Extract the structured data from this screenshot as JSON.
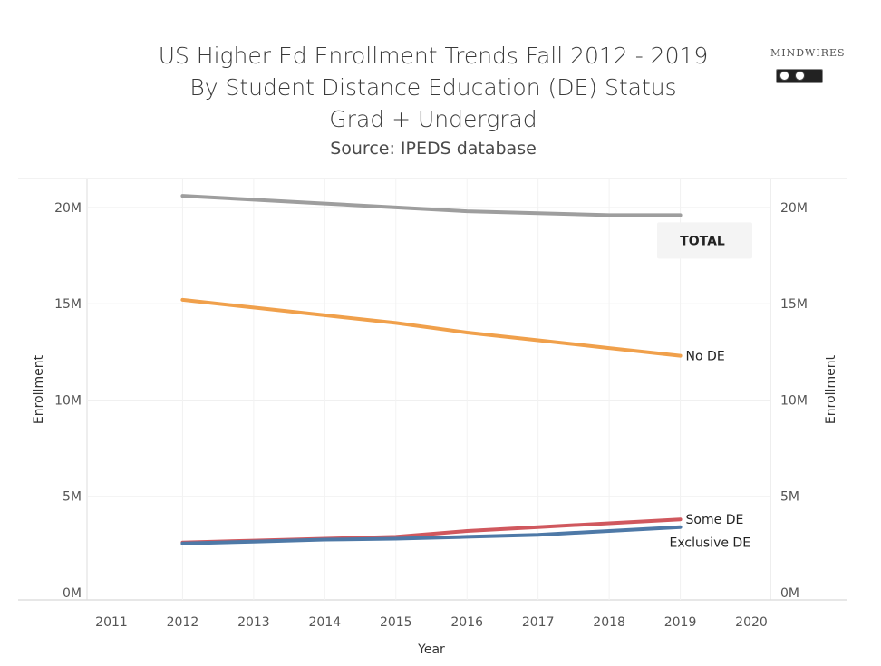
{
  "chart_data": {
    "type": "line",
    "title_lines": [
      "US Higher Ed Enrollment Trends Fall 2012 - 2019",
      "By Student Distance Education (DE) Status",
      "Grad + Undergrad"
    ],
    "subtitle": "Source: IPEDS database",
    "xlabel": "Year",
    "ylabel": "Enrollment",
    "ylabel_right": "Enrollment",
    "x_ticks": [
      "2011",
      "2012",
      "2013",
      "2014",
      "2015",
      "2016",
      "2017",
      "2018",
      "2019",
      "2020"
    ],
    "xlim": [
      2011,
      2020
    ],
    "y_ticks": [
      "0M",
      "5M",
      "10M",
      "15M",
      "20M"
    ],
    "ylim": [
      0,
      21.5
    ],
    "y_unit": "millions",
    "grid": true,
    "x": [
      2012,
      2013,
      2014,
      2015,
      2016,
      2017,
      2018,
      2019
    ],
    "series": [
      {
        "name": "TOTAL",
        "color": "#9e9e9e",
        "values": [
          20.6,
          20.4,
          20.2,
          20.0,
          19.8,
          19.7,
          19.6,
          19.6
        ]
      },
      {
        "name": "No DE",
        "color": "#f0a04b",
        "values": [
          15.2,
          14.8,
          14.4,
          14.0,
          13.5,
          13.1,
          12.7,
          12.3
        ]
      },
      {
        "name": "Some DE",
        "color": "#d0585e",
        "values": [
          2.6,
          2.7,
          2.8,
          2.9,
          3.2,
          3.4,
          3.6,
          3.8
        ]
      },
      {
        "name": "Exclusive DE",
        "color": "#4e79a7",
        "values": [
          2.55,
          2.65,
          2.75,
          2.8,
          2.9,
          3.0,
          3.2,
          3.4
        ]
      }
    ]
  },
  "logo": {
    "text": "MINDWIRES"
  }
}
